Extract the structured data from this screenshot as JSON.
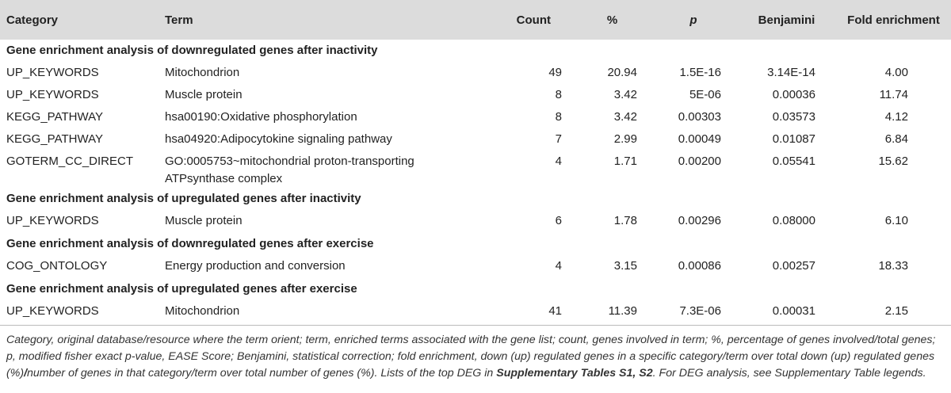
{
  "headers": {
    "category": "Category",
    "term": "Term",
    "count": "Count",
    "percent": "%",
    "p": "p",
    "benjamini": "Benjamini",
    "fold": "Fold enrichment"
  },
  "sections": [
    {
      "title": "Gene enrichment analysis of downregulated genes after inactivity",
      "rows": [
        {
          "category": "UP_KEYWORDS",
          "term": "Mitochondrion",
          "term2": "",
          "count": "49",
          "percent": "20.94",
          "p": "1.5E-16",
          "benjamini": "3.14E-14",
          "fold": "4.00"
        },
        {
          "category": "UP_KEYWORDS",
          "term": "Muscle protein",
          "term2": "",
          "count": "8",
          "percent": "3.42",
          "p": "5E-06",
          "benjamini": "0.00036",
          "fold": "11.74"
        },
        {
          "category": "KEGG_PATHWAY",
          "term": "hsa00190:Oxidative phosphorylation",
          "term2": "",
          "count": "8",
          "percent": "3.42",
          "p": "0.00303",
          "benjamini": "0.03573",
          "fold": "4.12"
        },
        {
          "category": "KEGG_PATHWAY",
          "term": "hsa04920:Adipocytokine signaling pathway",
          "term2": "",
          "count": "7",
          "percent": "2.99",
          "p": "0.00049",
          "benjamini": "0.01087",
          "fold": "6.84"
        },
        {
          "category": "GOTERM_CC_DIRECT",
          "term": "GO:0005753~mitochondrial proton-transporting",
          "term2": "ATPsynthase complex",
          "count": "4",
          "percent": "1.71",
          "p": "0.00200",
          "benjamini": "0.05541",
          "fold": "15.62"
        }
      ]
    },
    {
      "title": "Gene enrichment analysis of upregulated genes after inactivity",
      "rows": [
        {
          "category": "UP_KEYWORDS",
          "term": "Muscle protein",
          "term2": "",
          "count": "6",
          "percent": "1.78",
          "p": "0.00296",
          "benjamini": "0.08000",
          "fold": "6.10"
        }
      ]
    },
    {
      "title": "Gene enrichment analysis of downregulated genes after exercise",
      "rows": [
        {
          "category": "COG_ONTOLOGY",
          "term": "Energy production and conversion",
          "term2": "",
          "count": "4",
          "percent": "3.15",
          "p": "0.00086",
          "benjamini": "0.00257",
          "fold": "18.33"
        }
      ]
    },
    {
      "title": "Gene enrichment analysis of upregulated genes after exercise",
      "rows": [
        {
          "category": "UP_KEYWORDS",
          "term": "Mitochondrion",
          "term2": "",
          "count": "41",
          "percent": "11.39",
          "p": "7.3E-06",
          "benjamini": "0.00031",
          "fold": "2.15"
        }
      ]
    }
  ],
  "footnote": {
    "part1": "Category, original database/resource where the term orient; term, enriched terms associated with the gene list; count, genes involved in term; %, percentage of genes involved/total genes; p, modified fisher exact p-value, EASE Score; Benjamini, statistical correction; fold enrichment, down (up) regulated genes in a specific category/term over total down (up) regulated genes (%)",
    "slash": "/",
    "part2": "number of genes in that category/term over total number of genes (%). Lists of the top DEG in ",
    "bold_ref": "Supplementary Tables S1, S2",
    "part3": ". For DEG analysis, see Supplementary Table legends."
  }
}
